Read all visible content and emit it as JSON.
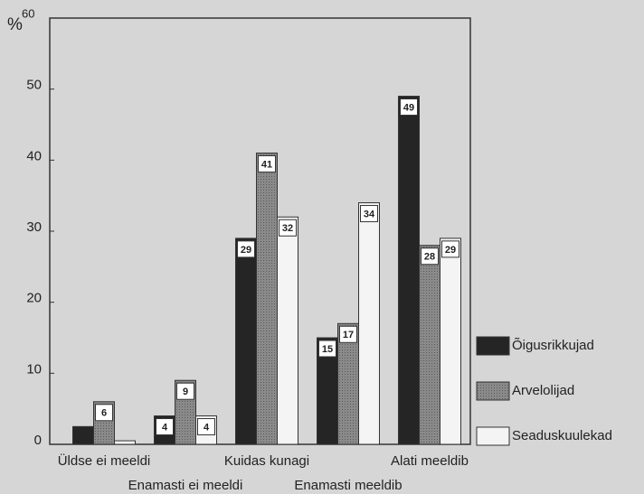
{
  "chart_data": {
    "type": "bar",
    "y_label": "%",
    "categories": [
      "Üldse ei meeldi",
      "Enamasti ei meeldi",
      "Kuidas kunagi",
      "Enamasti meeldib",
      "Alati meeldib"
    ],
    "series": [
      {
        "name": "Õigusrikkujad",
        "color": "#252525",
        "values": [
          2.5,
          4,
          29,
          15,
          49
        ],
        "value_labels": [
          null,
          "4",
          "29",
          "15",
          "49"
        ]
      },
      {
        "name": "Arvelolijad",
        "color": "#8a8a8a",
        "values": [
          6,
          9,
          41,
          17,
          28
        ],
        "value_labels": [
          "6",
          "9",
          "41",
          "17",
          "28"
        ]
      },
      {
        "name": "Seaduskuulekad",
        "color": "#f4f4f4",
        "values": [
          0.5,
          4,
          32,
          34,
          29
        ],
        "value_labels": [
          null,
          "4",
          "32",
          "34",
          "29"
        ]
      }
    ],
    "ylim": [
      0,
      60
    ],
    "yticks": [
      0,
      10,
      20,
      30,
      40,
      50,
      60
    ],
    "grid": false,
    "legend": "right"
  }
}
